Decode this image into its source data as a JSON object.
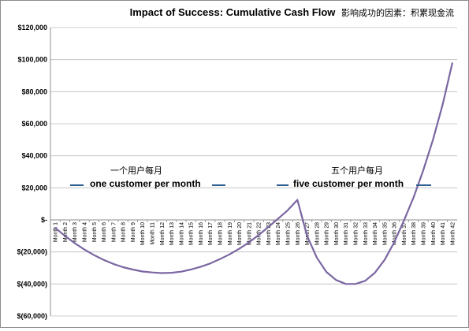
{
  "chart_data": {
    "type": "line",
    "title": "Impact of Success:  Cumulative Cash Flow",
    "subtitle": "影响成功的因素：积累现金流",
    "xlabel": "",
    "ylabel": "",
    "ylim": [
      -60000,
      120000
    ],
    "grid": true,
    "legend": "none",
    "y_ticks": [
      120000,
      100000,
      80000,
      60000,
      40000,
      20000,
      0,
      -20000,
      -40000,
      -60000
    ],
    "y_tick_labels": [
      "$120,000",
      "$100,000",
      "$80,000",
      "$60,000",
      "$40,000",
      "$20,000",
      "$-",
      "$(20,000)",
      "$(40,000)",
      "$(60,000)"
    ],
    "categories": [
      "Month 1",
      "Month 2",
      "Month 3",
      "Month 4",
      "Month 5",
      "Month 6",
      "Month 7",
      "Month 8",
      "Month 9",
      "Month 10",
      "Month 11",
      "Month 12",
      "Month 13",
      "Month 14",
      "Month 15",
      "Month 16",
      "Month 17",
      "Month 18",
      "Month 19",
      "Month 20",
      "Month 21",
      "Month 22",
      "Month 23",
      "Month 24",
      "Month 25",
      "Month 26",
      "Month 27",
      "Month 28",
      "Month 29",
      "Month 30",
      "Month 31",
      "Month 32",
      "Month 33",
      "Month 34",
      "Month 35",
      "Month 36",
      "Month 37",
      "Month 38",
      "Month 39",
      "Month 40",
      "Month 41",
      "Month 42"
    ],
    "series": [
      {
        "values": [
          -5000,
          -10000,
          -14500,
          -18500,
          -22000,
          -25000,
          -27500,
          -29500,
          -31000,
          -32200,
          -32800,
          -33200,
          -33000,
          -32300,
          -31000,
          -29300,
          -27200,
          -24500,
          -21500,
          -18000,
          -14000,
          -9500,
          -4500,
          700,
          6000,
          12500,
          -10000,
          -23500,
          -32500,
          -37500,
          -40000,
          -40000,
          -38000,
          -33000,
          -25000,
          -14000,
          -500,
          14000,
          31000,
          50000,
          72000,
          98000
        ]
      }
    ],
    "line_color": "#7b66a2",
    "annotations": [
      {
        "cn": "一个用户每月",
        "en": "one customer per month"
      },
      {
        "cn": "五个用户每月",
        "en": "five customer per month"
      }
    ],
    "annotation_color": "#2e5f91"
  }
}
